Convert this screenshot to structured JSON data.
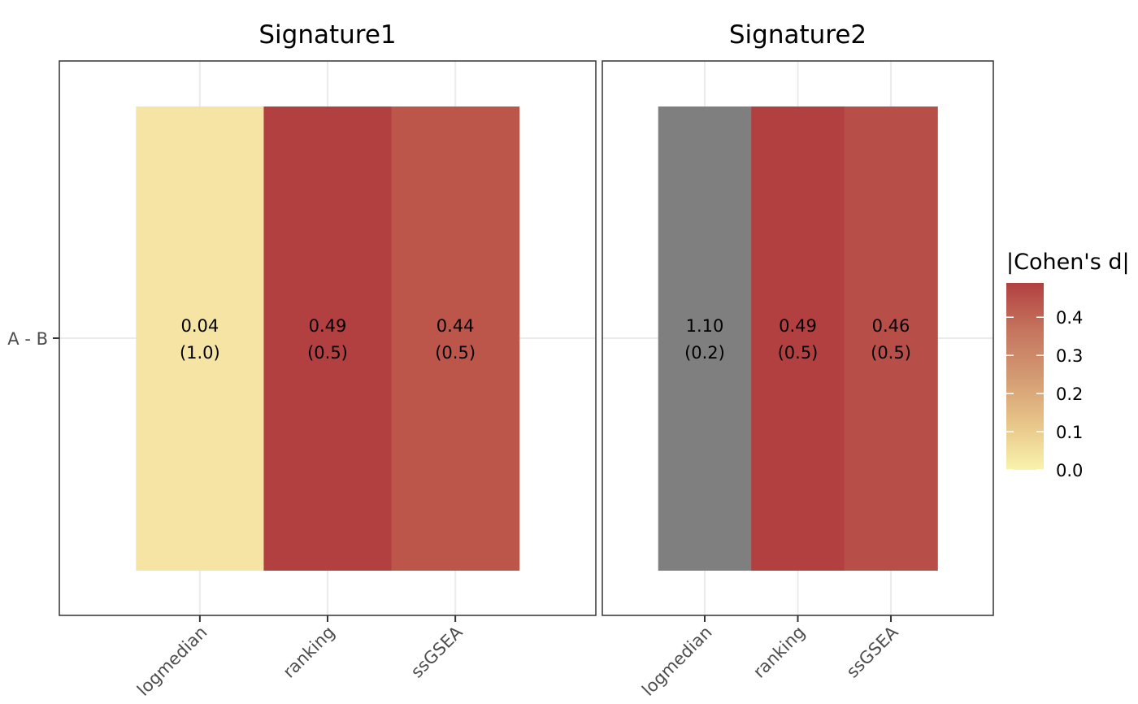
{
  "chart_data": {
    "type": "heatmap",
    "y_categories": [
      "A - B"
    ],
    "facets": [
      {
        "title": "Signature1",
        "x_categories": [
          "logmedian",
          "ranking",
          "ssGSEA"
        ],
        "cells": [
          {
            "x": "logmedian",
            "y": "A - B",
            "value": 0.04,
            "label": "0.04",
            "sublabel": "(1.0)",
            "color": "#F5E4A4"
          },
          {
            "x": "ranking",
            "y": "A - B",
            "value": 0.49,
            "label": "0.49",
            "sublabel": "(0.5)",
            "color": "#B24040"
          },
          {
            "x": "ssGSEA",
            "y": "A - B",
            "value": 0.44,
            "label": "0.44",
            "sublabel": "(0.5)",
            "color": "#BC564B"
          }
        ]
      },
      {
        "title": "Signature2",
        "x_categories": [
          "logmedian",
          "ranking",
          "ssGSEA"
        ],
        "cells": [
          {
            "x": "logmedian",
            "y": "A - B",
            "value": 1.1,
            "label": "1.10",
            "sublabel": "(0.2)",
            "color": "#7F7F7F"
          },
          {
            "x": "ranking",
            "y": "A - B",
            "value": 0.49,
            "label": "0.49",
            "sublabel": "(0.5)",
            "color": "#B24040"
          },
          {
            "x": "ssGSEA",
            "y": "A - B",
            "value": 0.46,
            "label": "0.46",
            "sublabel": "(0.5)",
            "color": "#B84E48"
          }
        ]
      }
    ],
    "legend": {
      "title": "|Cohen's d|",
      "range": [
        0.0,
        0.49
      ],
      "ticks": [
        0.0,
        0.1,
        0.2,
        0.3,
        0.4
      ],
      "tick_labels": [
        "0.0",
        "0.1",
        "0.2",
        "0.3",
        "0.4"
      ],
      "colors": [
        "#F9F3AE",
        "#E8C488",
        "#D39A72",
        "#C5745E",
        "#B24040"
      ],
      "placement": "right"
    },
    "na_color": "#7F7F7F",
    "grid": true
  }
}
